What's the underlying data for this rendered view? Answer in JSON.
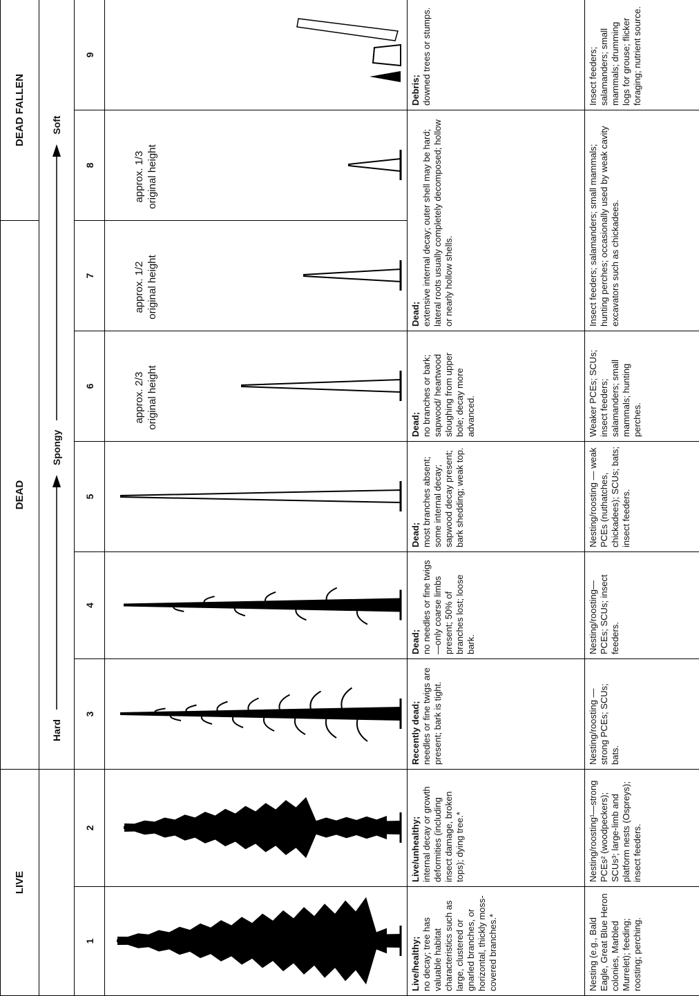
{
  "header": {
    "groups": [
      "LIVE",
      "DEAD",
      "DEAD FALLEN"
    ],
    "stages": [
      "Hard",
      "Spongy",
      "Soft"
    ]
  },
  "classes": [
    "1",
    "2",
    "3",
    "4",
    "5",
    "6",
    "7",
    "8",
    "9"
  ],
  "annotations": [
    "approx. 2/3 original height",
    "approx. 1/2 original height",
    "approx. 1/3 original height"
  ],
  "descriptions": [
    {
      "lead": "Live/healthy;",
      "text": "no decay; tree has valuable habitat characteristics such as large, clustered or gnarled branches, or horizontal, thickly moss-covered branches.*"
    },
    {
      "lead": "Live/unhealthy;",
      "text": "internal decay or growth deformities (including insect damage, broken tops); dying tree.*"
    },
    {
      "lead": "Recently dead;",
      "text": "needles or fine twigs are present; bark is tight."
    },
    {
      "lead": "Dead;",
      "text": "no needles or fine twigs—only coarse limbs present; 50% of branches lost; loose bark."
    },
    {
      "lead": "Dead;",
      "text": "most branches absent; some internal decay; sapwood decay present; bark shedding; weak top."
    },
    {
      "lead": "Dead;",
      "text": "no branches or bark; sapwood/ heartwood sloughing from upper bole; decay more advanced."
    },
    {
      "lead": "Dead;",
      "text": "extensive internal decay; outer shell may be hard; lateral roots usually completely decomposed; hollow or nearly hollow shells."
    },
    {
      "lead": "Debris;",
      "text": "downed trees or stumps."
    }
  ],
  "uses": [
    "Nesting (e.g., Bald Eagle, Great Blue Heron colonies, Marbled Murrelet); feeding; roosting; perching.",
    "Nesting/roosting¹—strong PCEs² (woodpeckers); SCUs³; large-limb and platform nests (Ospreys); insect feeders.",
    "Nesting/roosting — strong PCEs; SCUs; bats.",
    "Nesting/roosting—PCEs; SCUs; insect feeders.",
    "Nesting/roosting — weak PCEs (nuthatches, chickadees); SCUs; bats; insect feeders.",
    "Weaker PCEs; SCUs; insect feeders; salamanders; small mammals; hunting perches.",
    "Insect feeders; salamanders; small mammals; hunting perches; occasionally used by weak cavity excavators such as chickadees.",
    "Insect feeders; salamanders; small mammals; drumming logs for grouse; flicker foraging; nutrient source."
  ]
}
